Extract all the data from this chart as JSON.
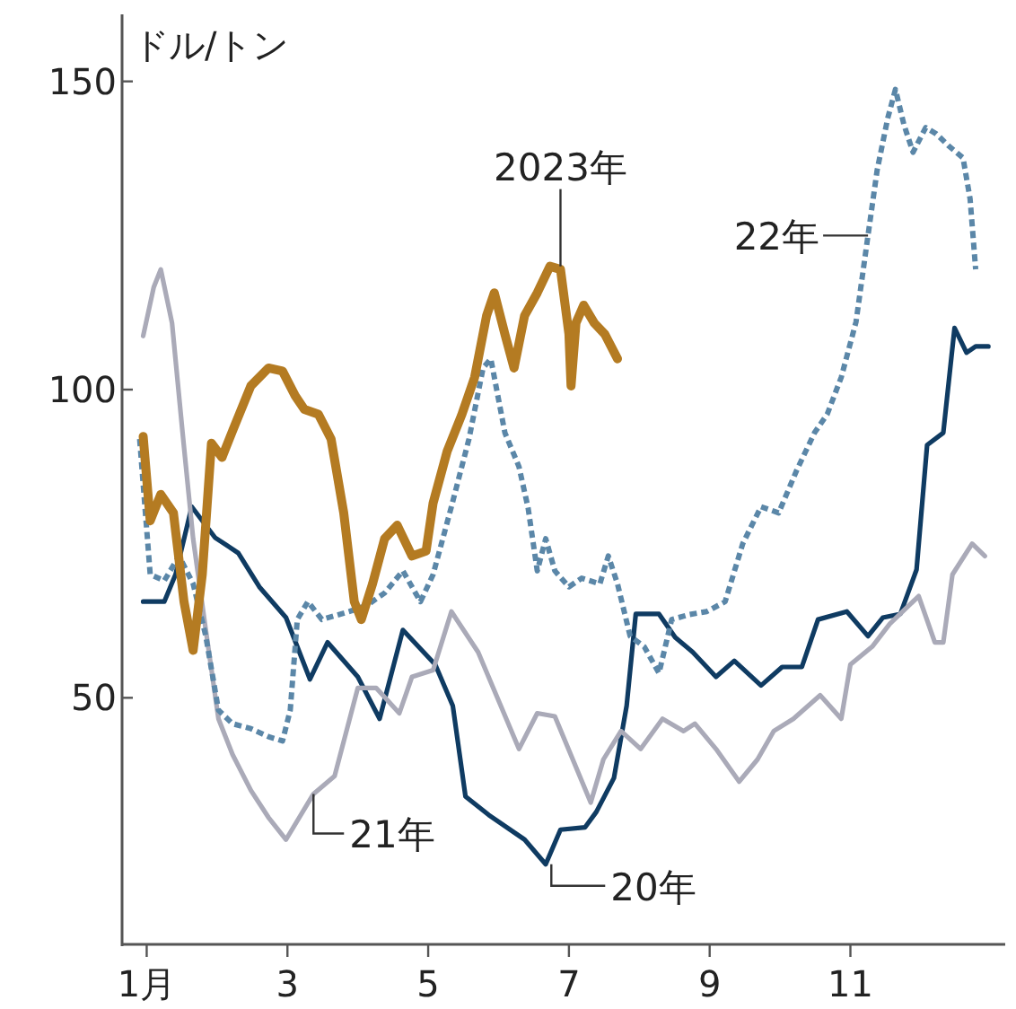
{
  "chart_data": {
    "type": "line",
    "ylabel": "ドル/トン",
    "xlim": [
      0.65,
      13.2
    ],
    "ylim": [
      10,
      160
    ],
    "xticks": [
      {
        "value": 1,
        "label": "1月"
      },
      3,
      5,
      7,
      9,
      11
    ],
    "yticks": [
      50,
      100,
      150
    ],
    "grid": false,
    "series": [
      {
        "color": "#0f3b62",
        "line_style": "solid",
        "x": [
          0.95,
          1.25,
          1.41,
          1.64,
          1.97,
          2.3,
          2.6,
          2.98,
          3.32,
          3.57,
          4.0,
          4.31,
          4.64,
          5.1,
          5.35,
          5.53,
          5.86,
          6.37,
          6.67,
          6.88,
          7.23,
          7.39,
          7.64,
          7.82,
          7.95,
          8.28,
          8.51,
          8.76,
          9.09,
          9.35,
          9.73,
          10.03,
          10.31,
          10.54,
          10.95,
          11.25,
          11.46,
          11.71,
          11.94,
          12.09,
          12.32,
          12.48,
          12.65,
          12.78,
          12.96
        ],
        "values": [
          65.6,
          65.6,
          70,
          81,
          76,
          73.5,
          68,
          63,
          53,
          59,
          53.4,
          46.6,
          61,
          55.4,
          48.7,
          34,
          31,
          27,
          23,
          28.6,
          29,
          31.5,
          37,
          48.7,
          63.6,
          63.6,
          59.8,
          57.4,
          53.4,
          56,
          52,
          55,
          55,
          62.7,
          64,
          60,
          63,
          63.6,
          70.8,
          91,
          93,
          110,
          106,
          107,
          107
        ]
      },
      {
        "color": "#aaaab8",
        "line_style": "solid",
        "x": [
          0.95,
          1.1,
          1.2,
          1.36,
          1.51,
          1.66,
          1.84,
          2.02,
          2.22,
          2.48,
          2.73,
          2.98,
          3.37,
          3.67,
          4.0,
          4.26,
          4.59,
          4.77,
          5.07,
          5.33,
          5.71,
          6.29,
          6.55,
          6.8,
          7.31,
          7.49,
          7.74,
          8.02,
          8.33,
          8.63,
          8.79,
          9.09,
          9.42,
          9.68,
          9.91,
          10.19,
          10.57,
          10.87,
          11.0,
          11.31,
          11.56,
          11.97,
          12.2,
          12.32,
          12.45,
          12.73,
          12.91
        ],
        "values": [
          108.7,
          116.6,
          119.5,
          110.8,
          93,
          75.8,
          61,
          46.6,
          40.8,
          35,
          30.6,
          27,
          34.4,
          37.3,
          51.6,
          51.6,
          47.5,
          53.4,
          54.5,
          64,
          57.4,
          41.7,
          47.5,
          47,
          33,
          40,
          44.6,
          41.7,
          46.6,
          44.6,
          45.8,
          41.7,
          36.4,
          40,
          44.6,
          46.6,
          50.4,
          46.6,
          55.4,
          58.3,
          62,
          66.5,
          59,
          59,
          70,
          75,
          73
        ]
      },
      {
        "color": "#5b87a8",
        "line_style": "dashed",
        "x": [
          0.9,
          1.05,
          1.25,
          1.46,
          1.66,
          1.84,
          2.02,
          2.22,
          2.48,
          2.73,
          2.93,
          3.04,
          3.14,
          3.29,
          3.49,
          3.88,
          4.13,
          4.38,
          4.64,
          4.89,
          5.07,
          5.33,
          5.58,
          5.78,
          5.89,
          6.09,
          6.29,
          6.42,
          6.55,
          6.67,
          6.8,
          7.0,
          7.18,
          7.44,
          7.56,
          7.69,
          7.87,
          8.07,
          8.28,
          8.46,
          8.71,
          8.96,
          9.22,
          9.47,
          9.73,
          9.98,
          10.24,
          10.49,
          10.67,
          10.87,
          11.08,
          11.25,
          11.38,
          11.53,
          11.64,
          11.76,
          11.89,
          12.07,
          12.22,
          12.4,
          12.6,
          12.7,
          12.78
        ],
        "values": [
          92,
          70,
          69,
          73,
          68.5,
          60,
          48,
          45.8,
          45,
          43.7,
          43,
          48,
          62.7,
          65.6,
          62.7,
          64,
          65,
          67,
          70.6,
          65.6,
          70,
          81,
          92,
          103.5,
          105,
          93,
          87.5,
          80.8,
          70.6,
          75.8,
          70.6,
          68,
          69.4,
          68.5,
          73,
          68.5,
          60,
          58.3,
          54,
          62.7,
          63.5,
          64,
          65.6,
          75,
          81,
          80,
          87,
          93,
          96,
          102,
          111,
          125,
          135.6,
          144,
          148.7,
          143,
          138.5,
          142.5,
          141.5,
          139.5,
          137.6,
          131,
          119.5
        ]
      },
      {
        "color": "#b47b22",
        "line_style": "solid",
        "x": [
          0.95,
          1.05,
          1.2,
          1.38,
          1.53,
          1.66,
          1.79,
          1.92,
          2.07,
          2.22,
          2.48,
          2.73,
          2.93,
          3.11,
          3.24,
          3.44,
          3.62,
          3.8,
          3.95,
          4.05,
          4.21,
          4.38,
          4.56,
          4.77,
          4.97,
          5.07,
          5.27,
          5.48,
          5.66,
          5.83,
          5.94,
          6.09,
          6.22,
          6.37,
          6.55,
          6.73,
          6.88,
          7.0,
          7.03,
          7.1,
          7.21,
          7.36,
          7.51,
          7.69
        ],
        "values": [
          92.4,
          78.7,
          83,
          80,
          65.6,
          57.7,
          70,
          91.3,
          89,
          93.3,
          100.6,
          103.5,
          103,
          99,
          96.8,
          96,
          92,
          80,
          65.6,
          62.7,
          68.5,
          75.8,
          78,
          73,
          73.8,
          81.6,
          90,
          96,
          102,
          112,
          115.7,
          109,
          103.5,
          112,
          115.7,
          120,
          119.5,
          109,
          100.6,
          110.8,
          113.7,
          110.8,
          109,
          105
        ]
      }
    ],
    "annotations": [
      {
        "text": "2023年",
        "x": 6.88,
        "y": 120
      },
      {
        "text": "22年",
        "x": 11.25,
        "y": 125
      },
      {
        "text": "21年",
        "x": 3.37,
        "y": 34.4
      },
      {
        "text": "20年",
        "x": 6.75,
        "y": 23
      }
    ]
  }
}
